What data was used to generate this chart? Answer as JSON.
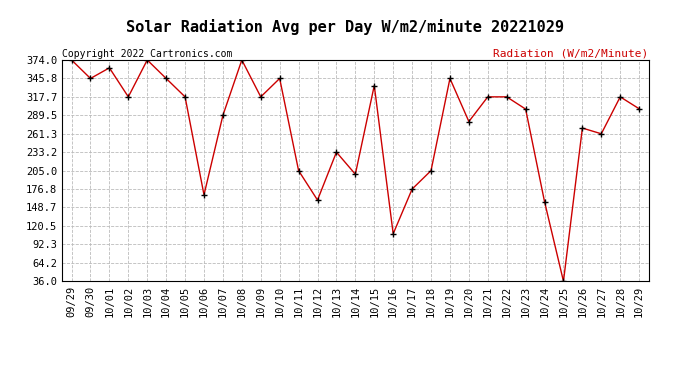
{
  "title": "Solar Radiation Avg per Day W/m2/minute 20221029",
  "copyright_text": "Copyright 2022 Cartronics.com",
  "legend_label": "Radiation (W/m2/Minute)",
  "dates": [
    "09/29",
    "09/30",
    "10/01",
    "10/02",
    "10/03",
    "10/04",
    "10/05",
    "10/06",
    "10/07",
    "10/08",
    "10/09",
    "10/10",
    "10/11",
    "10/12",
    "10/13",
    "10/14",
    "10/15",
    "10/16",
    "10/17",
    "10/18",
    "10/19",
    "10/20",
    "10/21",
    "10/22",
    "10/23",
    "10/24",
    "10/25",
    "10/26",
    "10/27",
    "10/28",
    "10/29"
  ],
  "values": [
    374.0,
    345.8,
    362.0,
    317.7,
    374.0,
    345.8,
    317.7,
    168.0,
    289.5,
    374.0,
    317.7,
    345.8,
    205.0,
    160.0,
    233.2,
    199.5,
    335.0,
    108.5,
    176.8,
    205.0,
    345.8,
    280.0,
    317.7,
    317.7,
    299.0,
    157.5,
    36.0,
    270.0,
    261.3,
    317.7,
    299.5
  ],
  "y_ticks": [
    36.0,
    64.2,
    92.3,
    120.5,
    148.7,
    176.8,
    205.0,
    233.2,
    261.3,
    289.5,
    317.7,
    345.8,
    374.0
  ],
  "ylim_min": 36.0,
  "ylim_max": 374.0,
  "line_color": "#cc0000",
  "marker_color": "#000000",
  "bg_color": "#ffffff",
  "grid_color": "#bbbbbb",
  "title_fontsize": 11,
  "copyright_fontsize": 7,
  "legend_fontsize": 8,
  "tick_fontsize": 7.5
}
